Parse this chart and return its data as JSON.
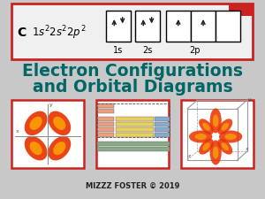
{
  "slide_bg": "#c8c8c8",
  "title_line1": "Electron Configurations",
  "title_line2": "and Orbital Diagrams",
  "title_color": "#006666",
  "title_fontsize": 13.5,
  "credit": "MIZZZ FOSTER © 2019",
  "credit_color": "#222222",
  "top_box_bg": "#f0f0f0",
  "top_box_border": "#cc2222",
  "red_corner": "#cc2222",
  "arrow_color": "#222222",
  "panel_border": "#cc2222",
  "lobe_outer": "#e83000",
  "lobe_inner": "#ffaa00",
  "cube_line": "#999999"
}
